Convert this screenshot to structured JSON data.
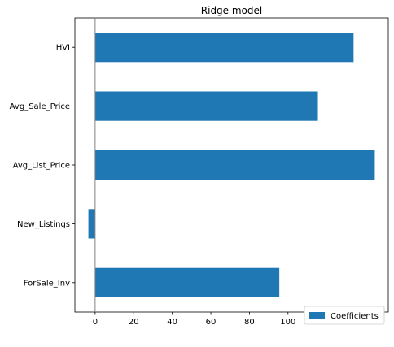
{
  "chart_data": {
    "type": "bar",
    "orientation": "horizontal",
    "title": "Ridge model",
    "xlabel": "",
    "ylabel": "",
    "categories": [
      "HVI",
      "Avg_Sale_Price",
      "Avg_List_Price",
      "New_Listings",
      "ForSale_Inv"
    ],
    "series": [
      {
        "name": "Coefficients",
        "values": [
          134,
          115.5,
          145,
          -3.5,
          95.5
        ],
        "color": "#1f77b4"
      }
    ],
    "xlim": [
      -10.5,
      152
    ],
    "xticks": [
      0,
      20,
      40,
      60,
      80,
      100,
      120,
      140
    ],
    "zero_line": true,
    "grid": false,
    "legend_position": "lower-right"
  }
}
